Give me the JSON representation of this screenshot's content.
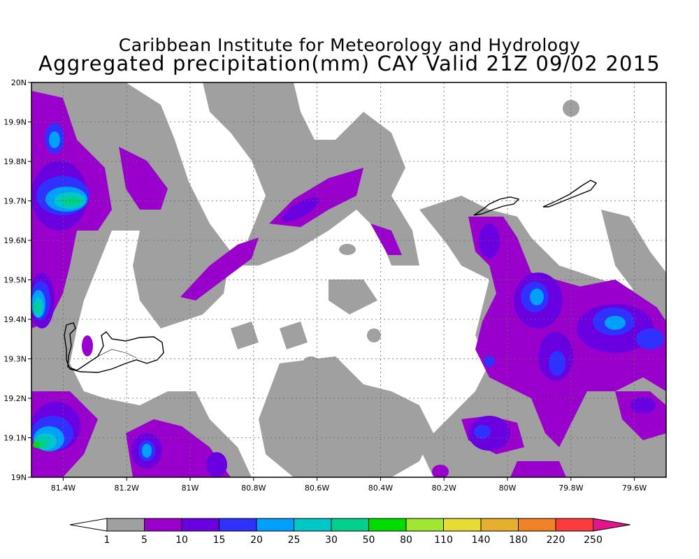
{
  "title": {
    "line1": "Caribbean Institute for Meteorology and Hydrology",
    "line2": "Aggregated precipitation(mm) CAY Valid 21Z 09/02 2015"
  },
  "map": {
    "lon_range": [
      -81.5,
      -79.5
    ],
    "lat_range": [
      19.0,
      20.0
    ],
    "grid": true,
    "lon_ticks": [
      {
        "value": -81.4,
        "label": "81.4W"
      },
      {
        "value": -81.2,
        "label": "81.2W"
      },
      {
        "value": -81.0,
        "label": "81W"
      },
      {
        "value": -80.8,
        "label": "80.8W"
      },
      {
        "value": -80.6,
        "label": "80.6W"
      },
      {
        "value": -80.4,
        "label": "80.4W"
      },
      {
        "value": -80.2,
        "label": "80.2W"
      },
      {
        "value": -80.0,
        "label": "80W"
      },
      {
        "value": -79.8,
        "label": "79.8W"
      },
      {
        "value": -79.6,
        "label": "79.6W"
      }
    ],
    "lat_ticks": [
      {
        "value": 19.0,
        "label": "19N"
      },
      {
        "value": 19.1,
        "label": "19.1N"
      },
      {
        "value": 19.2,
        "label": "19.2N"
      },
      {
        "value": 19.3,
        "label": "19.3N"
      },
      {
        "value": 19.4,
        "label": "19.4N"
      },
      {
        "value": 19.5,
        "label": "19.5N"
      },
      {
        "value": 19.6,
        "label": "19.6N"
      },
      {
        "value": 19.7,
        "label": "19.7N"
      },
      {
        "value": 19.8,
        "label": "19.8N"
      },
      {
        "value": 19.9,
        "label": "19.9N"
      },
      {
        "value": 20.0,
        "label": "20N"
      }
    ],
    "cells": [
      {
        "lon": -81.45,
        "lat": 19.72,
        "level": 6
      },
      {
        "lon": -81.4,
        "lat": 19.85,
        "level": 5
      },
      {
        "lon": -81.5,
        "lat": 19.43,
        "level": 6
      },
      {
        "lon": -81.47,
        "lat": 19.09,
        "level": 6
      },
      {
        "lon": -81.13,
        "lat": 19.06,
        "level": 5
      },
      {
        "lon": -79.92,
        "lat": 19.46,
        "level": 5
      },
      {
        "lon": -79.7,
        "lat": 19.41,
        "level": 5
      },
      {
        "lon": -79.87,
        "lat": 19.29,
        "level": 4
      },
      {
        "lon": -80.07,
        "lat": 19.11,
        "level": 4
      },
      {
        "lon": -80.05,
        "lat": 19.29,
        "level": 4
      },
      {
        "lon": -80.06,
        "lat": 19.6,
        "level": 4
      },
      {
        "lon": -79.65,
        "lat": 19.32,
        "level": 4
      },
      {
        "lon": -80.92,
        "lat": 19.03,
        "level": 4
      }
    ],
    "islands": [
      "Grand Cayman",
      "Little Cayman",
      "Cayman Brac"
    ]
  },
  "colorbar": {
    "labels": [
      "1",
      "5",
      "10",
      "15",
      "20",
      "25",
      "30",
      "50",
      "80",
      "110",
      "140",
      "180",
      "220",
      "250"
    ],
    "colors": [
      "#ffffff",
      "#a0a0a0",
      "#9900cc",
      "#6a00e0",
      "#3030ff",
      "#00a0ff",
      "#00c8c8",
      "#00d08c",
      "#00dc00",
      "#a0e632",
      "#e6dc32",
      "#e6af2d",
      "#f08228",
      "#fa3c3c",
      "#e6148c"
    ]
  }
}
